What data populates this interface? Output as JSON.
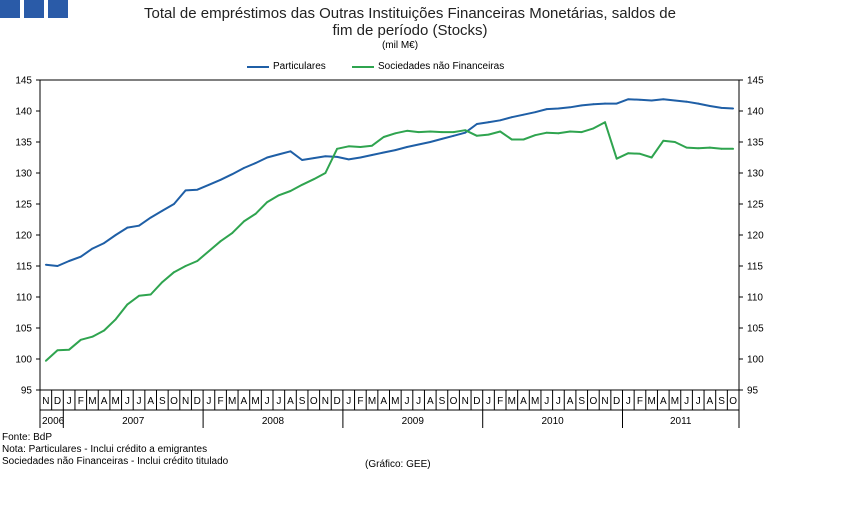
{
  "title_line1": "Total de empréstimos das Outras Instituições Financeiras Monetárias, saldos de",
  "title_line2": "fim de período (Stocks)",
  "unit": "(mil M€)",
  "notes": {
    "source": "Fonte: BdP",
    "note1": "Nota: Particulares - Inclui crédito a emigrantes",
    "note2": "Sociedades não Financeiras - Inclui crédito titulado"
  },
  "credit": "(Gráfico: GEE)",
  "colors": {
    "logo": "#2a5ba8",
    "particulares": "#1f5fa6",
    "sociedades": "#2fa44f"
  },
  "chart_data": {
    "type": "line",
    "title": "Total de empréstimos das Outras Instituições Financeiras Monetárias, saldos de fim de período (Stocks)",
    "ylabel": "mil M€",
    "ylim": [
      95,
      145
    ],
    "yticks": [
      95,
      100,
      105,
      110,
      115,
      120,
      125,
      130,
      135,
      140,
      145
    ],
    "month_labels": [
      "N",
      "D",
      "J",
      "F",
      "M",
      "A",
      "M",
      "J",
      "J",
      "A",
      "S",
      "O",
      "N",
      "D",
      "J",
      "F",
      "M",
      "A",
      "M",
      "J",
      "J",
      "A",
      "S",
      "O",
      "N",
      "D",
      "J",
      "F",
      "M",
      "A",
      "M",
      "J",
      "J",
      "A",
      "S",
      "O",
      "N",
      "D",
      "J",
      "F",
      "M",
      "A",
      "M",
      "J",
      "J",
      "A",
      "S",
      "O",
      "N",
      "D",
      "J",
      "F",
      "M",
      "A",
      "M",
      "J",
      "J",
      "A",
      "S",
      "O"
    ],
    "years": [
      {
        "label": "2006",
        "start": 0,
        "count": 2
      },
      {
        "label": "2007",
        "start": 2,
        "count": 12
      },
      {
        "label": "2008",
        "start": 14,
        "count": 12
      },
      {
        "label": "2009",
        "start": 26,
        "count": 12
      },
      {
        "label": "2010",
        "start": 38,
        "count": 12
      },
      {
        "label": "2011",
        "start": 50,
        "count": 10
      }
    ],
    "legend": [
      "Particulares",
      "Sociedades não Financeiras"
    ],
    "series": [
      {
        "name": "Particulares",
        "values": [
          115.2,
          115.0,
          115.8,
          116.5,
          117.8,
          118.7,
          120.0,
          121.2,
          121.5,
          122.8,
          123.9,
          125.0,
          127.2,
          127.3,
          128.1,
          128.9,
          129.8,
          130.8,
          131.6,
          132.5,
          133.0,
          133.5,
          132.1,
          132.4,
          132.7,
          132.6,
          132.2,
          132.5,
          132.9,
          133.3,
          133.7,
          134.2,
          134.6,
          135.0,
          135.5,
          136.0,
          136.5,
          137.9,
          138.2,
          138.5,
          139.0,
          139.4,
          139.8,
          140.3,
          140.4,
          140.6,
          140.9,
          141.1,
          141.2,
          141.2,
          141.9,
          141.8,
          141.7,
          141.9,
          141.7,
          141.5,
          141.2,
          140.8,
          140.5,
          140.4
        ]
      },
      {
        "name": "Sociedades não Financeiras",
        "values": [
          99.7,
          101.4,
          101.5,
          103.1,
          103.6,
          104.6,
          106.4,
          108.8,
          110.2,
          110.4,
          112.4,
          114.0,
          115.0,
          115.8,
          117.4,
          119.0,
          120.3,
          122.2,
          123.4,
          125.3,
          126.4,
          127.1,
          128.1,
          129.0,
          130.0,
          133.9,
          134.3,
          134.2,
          134.4,
          135.8,
          136.4,
          136.8,
          136.6,
          136.7,
          136.6,
          136.6,
          136.9,
          136.0,
          136.2,
          136.7,
          135.4,
          135.4,
          136.1,
          136.5,
          136.4,
          136.7,
          136.6,
          137.2,
          138.2,
          132.3,
          133.2,
          133.1,
          132.5,
          135.2,
          135.0,
          134.1,
          134.0,
          134.1,
          133.9,
          133.9
        ]
      }
    ]
  }
}
